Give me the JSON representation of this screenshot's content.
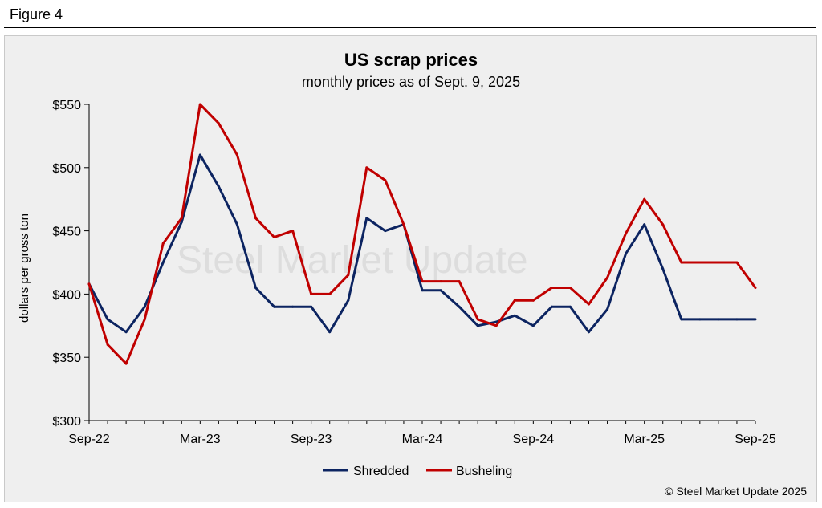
{
  "figure_label": "Figure 4",
  "watermark": "Steel Market Update",
  "copyright": "© Steel Market Update 2025",
  "chart_data": {
    "type": "line",
    "title": "US scrap prices",
    "subtitle": "monthly prices as of Sept. 9, 2025",
    "ylabel": "dollars per  gross ton",
    "xlabel": "",
    "ylim": [
      300,
      550
    ],
    "yticks": [
      300,
      350,
      400,
      450,
      500,
      550
    ],
    "ytick_labels": [
      "$300",
      "$350",
      "$400",
      "$450",
      "$500",
      "$550"
    ],
    "xtick_labels": [
      {
        "index": 0,
        "label": "Sep-22"
      },
      {
        "index": 6,
        "label": "Mar-23"
      },
      {
        "index": 12,
        "label": "Sep-23"
      },
      {
        "index": 18,
        "label": "Mar-24"
      },
      {
        "index": 24,
        "label": "Sep-24"
      },
      {
        "index": 30,
        "label": "Mar-25"
      },
      {
        "index": 36,
        "label": "Sep-25"
      }
    ],
    "x": [
      "Sep-22",
      "Oct-22",
      "Nov-22",
      "Dec-22",
      "Jan-23",
      "Feb-23",
      "Mar-23",
      "Apr-23",
      "May-23",
      "Jun-23",
      "Jul-23",
      "Aug-23",
      "Sep-23",
      "Oct-23",
      "Nov-23",
      "Dec-23",
      "Jan-24",
      "Feb-24",
      "Mar-24",
      "Apr-24",
      "May-24",
      "Jun-24",
      "Jul-24",
      "Aug-24",
      "Sep-24",
      "Oct-24",
      "Nov-24",
      "Dec-24",
      "Jan-25",
      "Feb-25",
      "Mar-25",
      "Apr-25",
      "May-25",
      "Jun-25",
      "Jul-25",
      "Aug-25",
      "Sep-25"
    ],
    "series": [
      {
        "name": "Shredded",
        "color": "#0c2461",
        "values": [
          408,
          380,
          370,
          390,
          425,
          457,
          510,
          485,
          455,
          405,
          390,
          390,
          390,
          370,
          395,
          460,
          450,
          455,
          403,
          403,
          390,
          375,
          378,
          383,
          375,
          390,
          390,
          370,
          388,
          432,
          455,
          420,
          380,
          380,
          380,
          380,
          380
        ]
      },
      {
        "name": "Busheling",
        "color": "#c00000",
        "values": [
          408,
          360,
          345,
          380,
          440,
          460,
          550,
          535,
          510,
          460,
          445,
          450,
          400,
          400,
          415,
          500,
          490,
          455,
          410,
          410,
          410,
          380,
          375,
          395,
          395,
          405,
          405,
          392,
          413,
          448,
          475,
          455,
          425,
          425,
          425,
          425,
          405
        ]
      }
    ],
    "legend": "bottom-center",
    "grid": false
  }
}
